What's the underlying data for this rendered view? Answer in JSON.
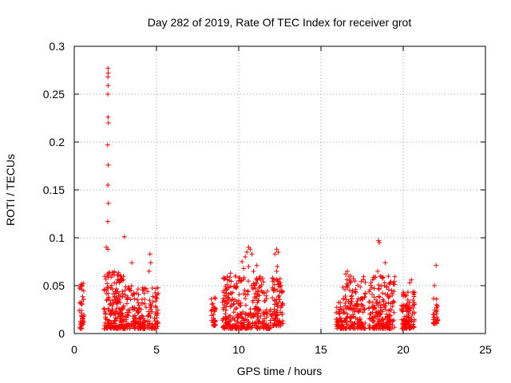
{
  "chart_data": {
    "type": "scatter",
    "title": "Day 282 of 2019, Rate Of TEC Index for receiver grot",
    "xlabel": "GPS time / hours",
    "ylabel": "ROTI / TECUs",
    "xlim": [
      0,
      25
    ],
    "ylim": [
      0,
      0.3
    ],
    "xticks": [
      0,
      5,
      10,
      15,
      20,
      25
    ],
    "xtick_labels": [
      "0",
      "5",
      "10",
      "15",
      "20",
      "25"
    ],
    "yticks": [
      0,
      0.05,
      0.1,
      0.15,
      0.2,
      0.25,
      0.3
    ],
    "ytick_labels": [
      "0",
      "0.05",
      "0.1",
      "0.15",
      "0.2",
      "0.25",
      "0.3"
    ],
    "grid": true,
    "marker": "+",
    "color": "#ff0000",
    "clusters": [
      {
        "x_start": 0.3,
        "x_end": 0.6,
        "y_low": 0.005,
        "y_high": 0.056,
        "count": 40
      },
      {
        "x_start": 1.8,
        "x_end": 3.0,
        "y_low": 0.005,
        "y_high": 0.065,
        "count": 190
      },
      {
        "x_start": 3.0,
        "x_end": 4.3,
        "y_low": 0.005,
        "y_high": 0.05,
        "count": 140
      },
      {
        "x_start": 4.3,
        "x_end": 5.1,
        "y_low": 0.005,
        "y_high": 0.048,
        "count": 70
      },
      {
        "x_start": 8.3,
        "x_end": 8.6,
        "y_low": 0.008,
        "y_high": 0.038,
        "count": 30
      },
      {
        "x_start": 9.0,
        "x_end": 11.5,
        "y_low": 0.005,
        "y_high": 0.06,
        "count": 290
      },
      {
        "x_start": 11.5,
        "x_end": 12.0,
        "y_low": 0.005,
        "y_high": 0.045,
        "count": 40
      },
      {
        "x_start": 12.0,
        "x_end": 12.7,
        "y_low": 0.008,
        "y_high": 0.06,
        "count": 90
      },
      {
        "x_start": 15.9,
        "x_end": 16.3,
        "y_low": 0.005,
        "y_high": 0.036,
        "count": 40
      },
      {
        "x_start": 16.3,
        "x_end": 17.7,
        "y_low": 0.005,
        "y_high": 0.06,
        "count": 160
      },
      {
        "x_start": 17.9,
        "x_end": 19.5,
        "y_low": 0.005,
        "y_high": 0.06,
        "count": 190
      },
      {
        "x_start": 19.9,
        "x_end": 20.7,
        "y_low": 0.005,
        "y_high": 0.045,
        "count": 110
      },
      {
        "x_start": 21.8,
        "x_end": 22.1,
        "y_low": 0.01,
        "y_high": 0.038,
        "count": 30
      }
    ],
    "outliers": [
      {
        "x": 2.05,
        "y": 0.277
      },
      {
        "x": 2.07,
        "y": 0.272
      },
      {
        "x": 2.05,
        "y": 0.268
      },
      {
        "x": 2.06,
        "y": 0.259
      },
      {
        "x": 2.04,
        "y": 0.25
      },
      {
        "x": 2.06,
        "y": 0.226
      },
      {
        "x": 2.08,
        "y": 0.22
      },
      {
        "x": 2.03,
        "y": 0.197
      },
      {
        "x": 2.07,
        "y": 0.176
      },
      {
        "x": 2.05,
        "y": 0.155
      },
      {
        "x": 2.08,
        "y": 0.136
      },
      {
        "x": 2.04,
        "y": 0.117
      },
      {
        "x": 1.95,
        "y": 0.09
      },
      {
        "x": 2.05,
        "y": 0.088
      },
      {
        "x": 3.05,
        "y": 0.101
      },
      {
        "x": 3.5,
        "y": 0.074
      },
      {
        "x": 4.6,
        "y": 0.083
      },
      {
        "x": 4.65,
        "y": 0.074
      },
      {
        "x": 4.55,
        "y": 0.065
      },
      {
        "x": 9.5,
        "y": 0.063
      },
      {
        "x": 10.6,
        "y": 0.09
      },
      {
        "x": 10.7,
        "y": 0.088
      },
      {
        "x": 10.5,
        "y": 0.085
      },
      {
        "x": 10.4,
        "y": 0.08
      },
      {
        "x": 10.8,
        "y": 0.083
      },
      {
        "x": 10.2,
        "y": 0.075
      },
      {
        "x": 10.6,
        "y": 0.07
      },
      {
        "x": 10.3,
        "y": 0.068
      },
      {
        "x": 10.9,
        "y": 0.065
      },
      {
        "x": 11.1,
        "y": 0.071
      },
      {
        "x": 12.3,
        "y": 0.088
      },
      {
        "x": 12.4,
        "y": 0.085
      },
      {
        "x": 12.2,
        "y": 0.083
      },
      {
        "x": 12.35,
        "y": 0.07
      },
      {
        "x": 12.3,
        "y": 0.065
      },
      {
        "x": 16.6,
        "y": 0.065
      },
      {
        "x": 16.7,
        "y": 0.06
      },
      {
        "x": 16.5,
        "y": 0.062
      },
      {
        "x": 18.5,
        "y": 0.097
      },
      {
        "x": 18.55,
        "y": 0.095
      },
      {
        "x": 18.45,
        "y": 0.065
      },
      {
        "x": 18.6,
        "y": 0.06
      },
      {
        "x": 18.9,
        "y": 0.074
      },
      {
        "x": 20.5,
        "y": 0.056
      },
      {
        "x": 20.4,
        "y": 0.053
      },
      {
        "x": 22.0,
        "y": 0.071
      },
      {
        "x": 21.9,
        "y": 0.05
      }
    ]
  }
}
